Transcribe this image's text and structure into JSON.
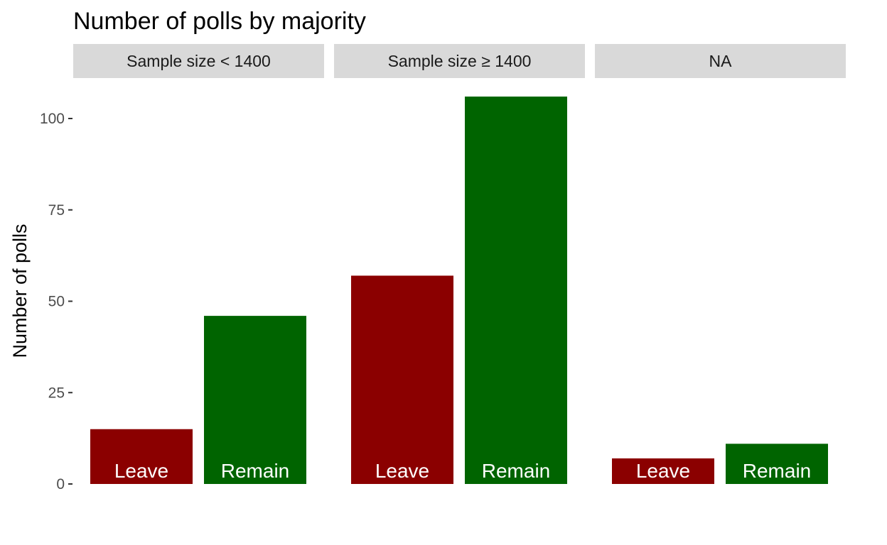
{
  "chart_data": {
    "type": "bar",
    "title": "Number of polls by majority",
    "xlabel": "",
    "ylabel": "Number of polls",
    "ylim": [
      0,
      106
    ],
    "yticks": [
      0,
      25,
      50,
      75,
      100
    ],
    "grid": false,
    "legend": "none",
    "categories": [
      "Leave",
      "Remain"
    ],
    "colors": {
      "Leave": "#8b0000",
      "Remain": "#006400",
      "strip_background": "#d9d9d9"
    },
    "facets": [
      {
        "label": "Sample size < 1400",
        "values": [
          15,
          46
        ]
      },
      {
        "label": "Sample size ≥ 1400",
        "values": [
          57,
          106
        ]
      },
      {
        "label": "NA",
        "values": [
          7,
          11
        ]
      }
    ]
  }
}
